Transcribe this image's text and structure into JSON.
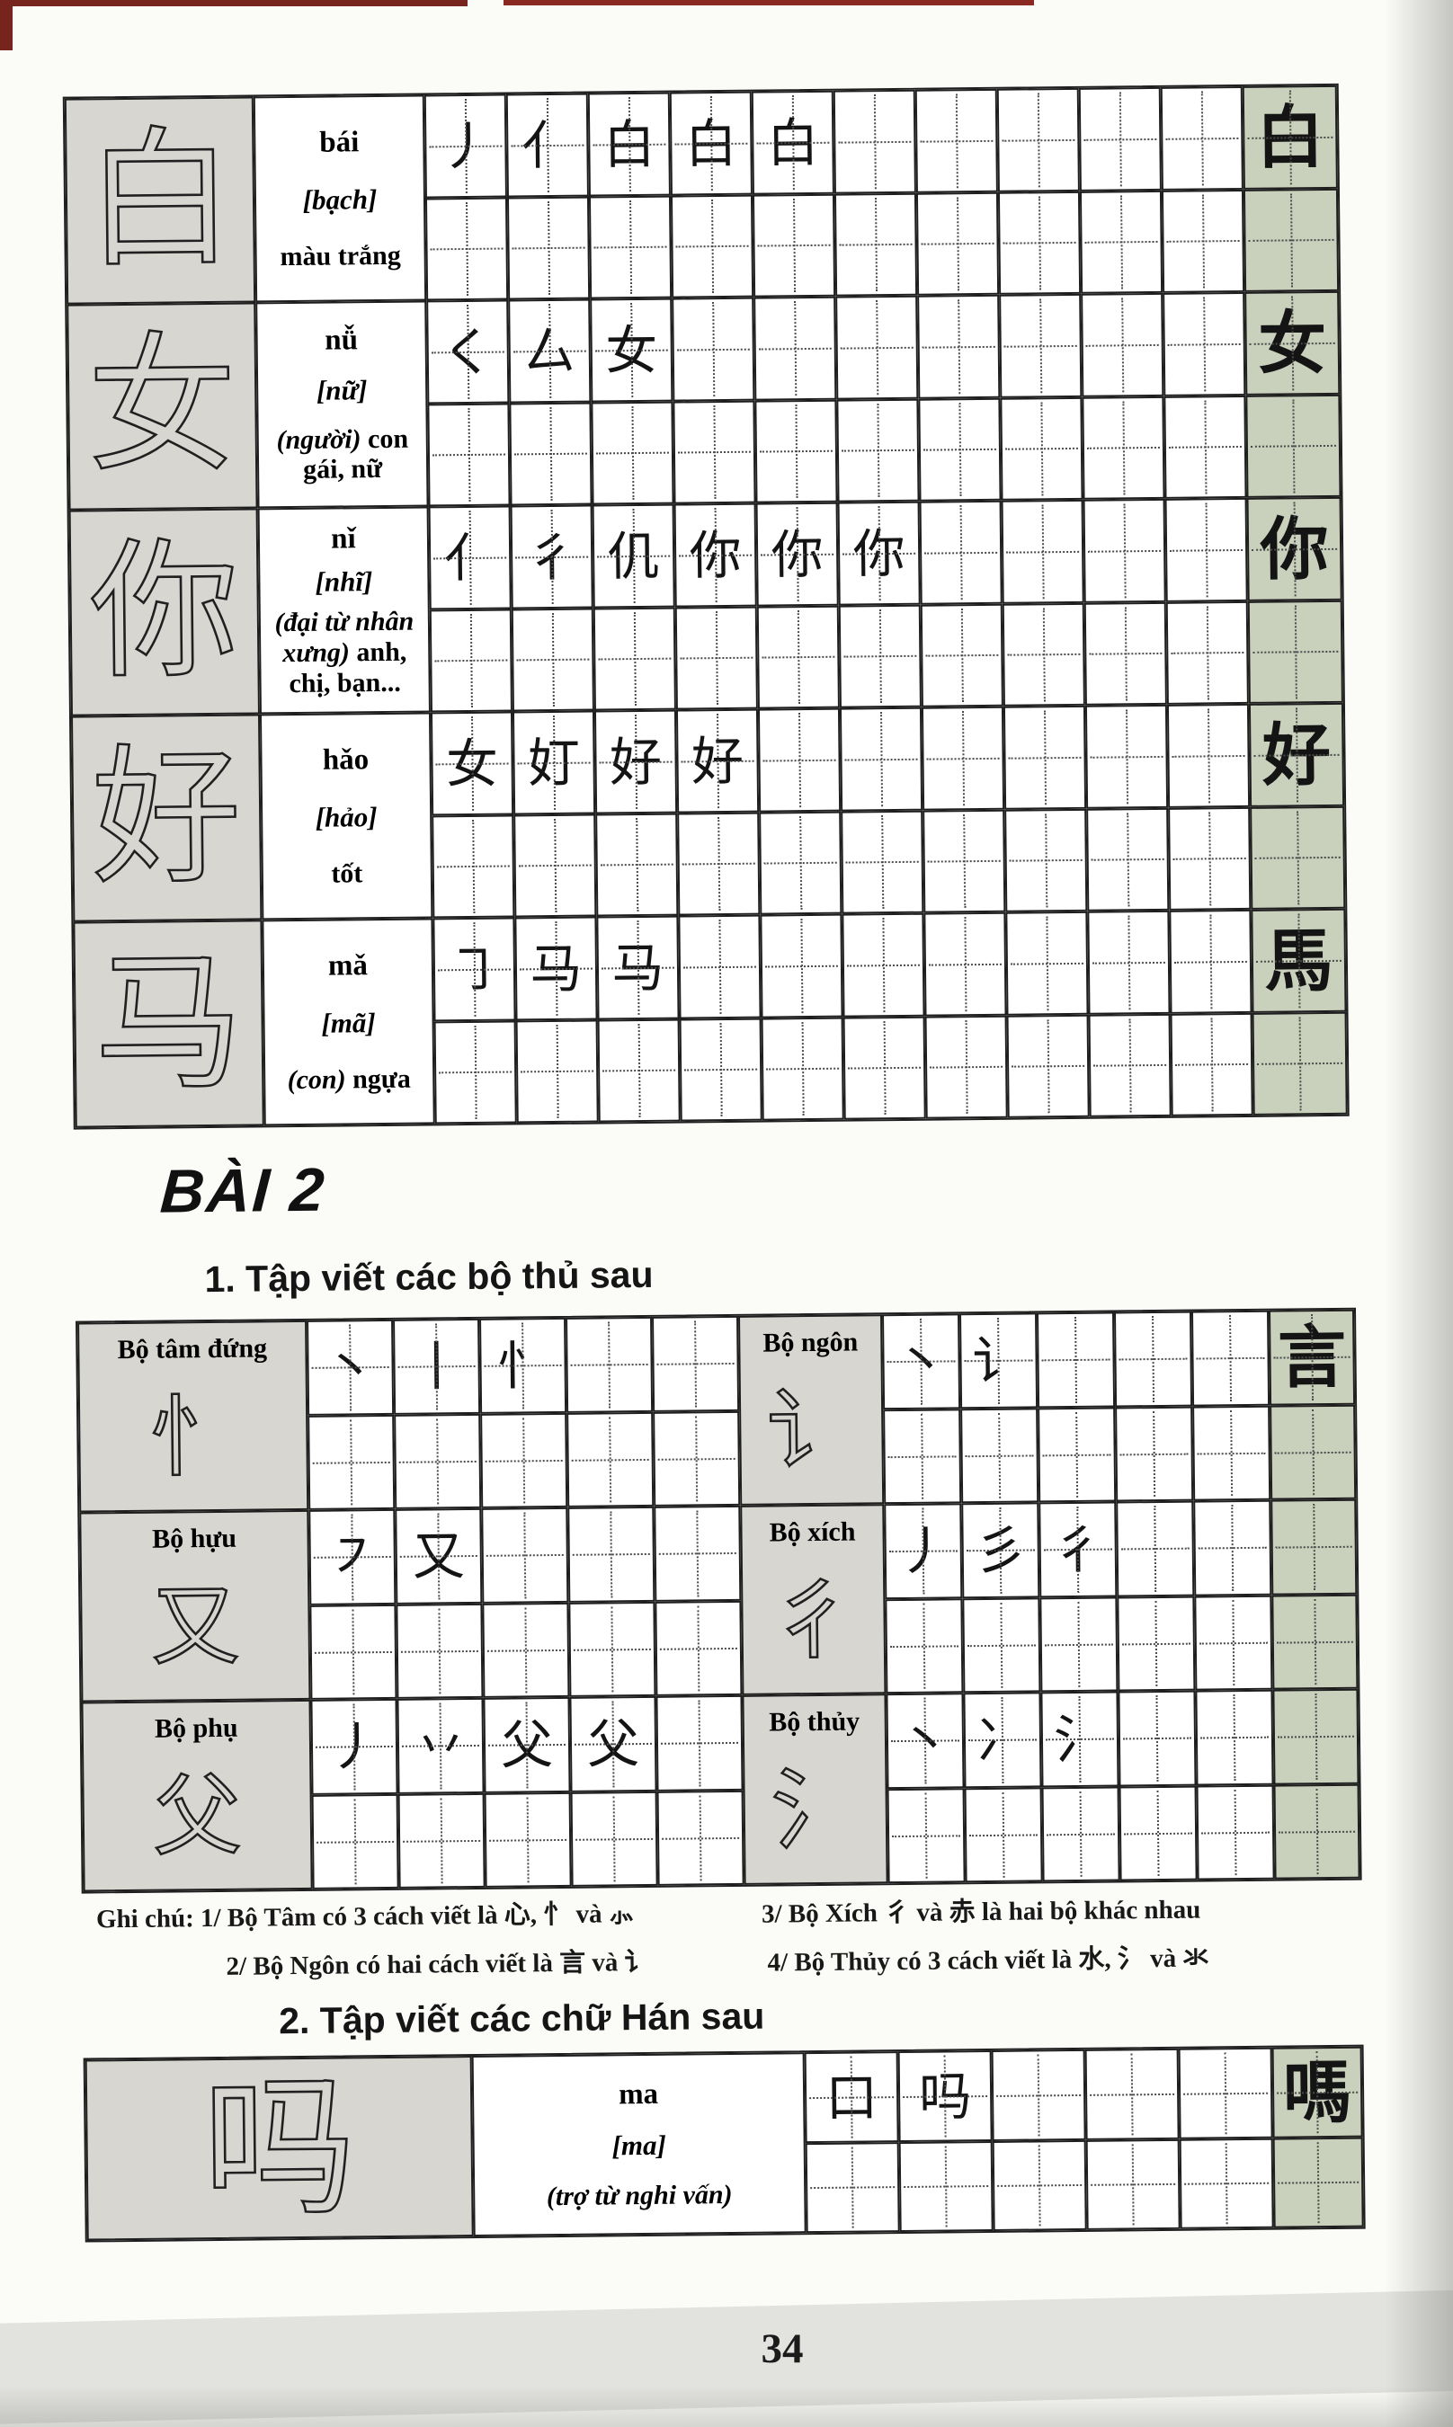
{
  "headings": {
    "lesson": "BÀI 2",
    "section1": "1. Tập viết các bộ thủ sau",
    "section2": "2. Tập viết các chữ Hán sau"
  },
  "char_table": {
    "practice_columns": 10,
    "rows": [
      {
        "hanzi": "白",
        "pinyin": "bái",
        "sino": "[bạch]",
        "meaning_italic": "",
        "meaning": "màu trắng",
        "strokes": [
          "丿",
          "亻",
          "白",
          "白",
          "白"
        ],
        "model": "白"
      },
      {
        "hanzi": "女",
        "pinyin": "nǚ",
        "sino": "[nữ]",
        "meaning_italic": "(người)",
        "meaning": "con gái, nữ",
        "strokes": [
          "く",
          "厶",
          "女"
        ],
        "model": "女"
      },
      {
        "hanzi": "你",
        "pinyin": "nǐ",
        "sino": "[nhĩ]",
        "meaning_italic": "(đại từ nhân xưng)",
        "meaning": "anh, chị, bạn...",
        "strokes": [
          "亻",
          "彳",
          "仉",
          "你",
          "你",
          "你"
        ],
        "model": "你"
      },
      {
        "hanzi": "好",
        "pinyin": "hǎo",
        "sino": "[hảo]",
        "meaning_italic": "",
        "meaning": "tốt",
        "strokes": [
          "女",
          "奵",
          "好",
          "好"
        ],
        "model": "好"
      },
      {
        "hanzi": "马",
        "pinyin": "mǎ",
        "sino": "[mã]",
        "meaning_italic": "(con)",
        "meaning": "ngựa",
        "strokes": [
          "㇆",
          "马",
          "马"
        ],
        "model": "馬"
      }
    ]
  },
  "radical_table": {
    "practice_columns_per_half": 5,
    "rows": [
      {
        "left": {
          "label": "Bộ tâm đứng",
          "glyph": "忄",
          "strokes": [
            "丶",
            "丨",
            "忄"
          ]
        },
        "right": {
          "label": "Bộ ngôn",
          "glyph": "讠",
          "strokes": [
            "丶",
            "讠"
          ],
          "model": "言"
        }
      },
      {
        "left": {
          "label": "Bộ hựu",
          "glyph": "又",
          "strokes": [
            "㇇",
            "又"
          ]
        },
        "right": {
          "label": "Bộ xích",
          "glyph": "彳",
          "strokes": [
            "丿",
            "彡",
            "彳"
          ],
          "model": ""
        }
      },
      {
        "left": {
          "label": "Bộ phụ",
          "glyph": "父",
          "strokes": [
            "丿",
            "丷",
            "父",
            "父"
          ]
        },
        "right": {
          "label": "Bộ thủy",
          "glyph": "氵",
          "strokes": [
            "丶",
            "冫",
            "氵"
          ],
          "model": ""
        }
      }
    ]
  },
  "notes": {
    "left": [
      "Ghi chú: 1/ Bộ Tâm có 3 cách viết là 心, 忄 và ⺗",
      "2/ Bộ Ngôn có hai cách viết là 言 và 讠"
    ],
    "right": [
      "3/ Bộ Xích 彳 và 赤 là hai bộ khác nhau",
      "4/ Bộ Thủy có 3 cách viết là 水, 氵 và 氺"
    ]
  },
  "han_table": {
    "practice_columns": 5,
    "rows": [
      {
        "hanzi": "吗",
        "pinyin": "ma",
        "sino": "[ma]",
        "meaning_italic": "(trợ từ nghi vấn)",
        "meaning": "",
        "strokes": [
          "口",
          "吗"
        ],
        "model": "嗎"
      }
    ]
  },
  "page": {
    "number": "34"
  },
  "colors": {
    "ink": "#1e1e1e",
    "cell_grey": "#d7d6d1",
    "cell_green": "#c9d0bc",
    "paper": "#fbfbf8",
    "mark_red": "#77241d"
  }
}
